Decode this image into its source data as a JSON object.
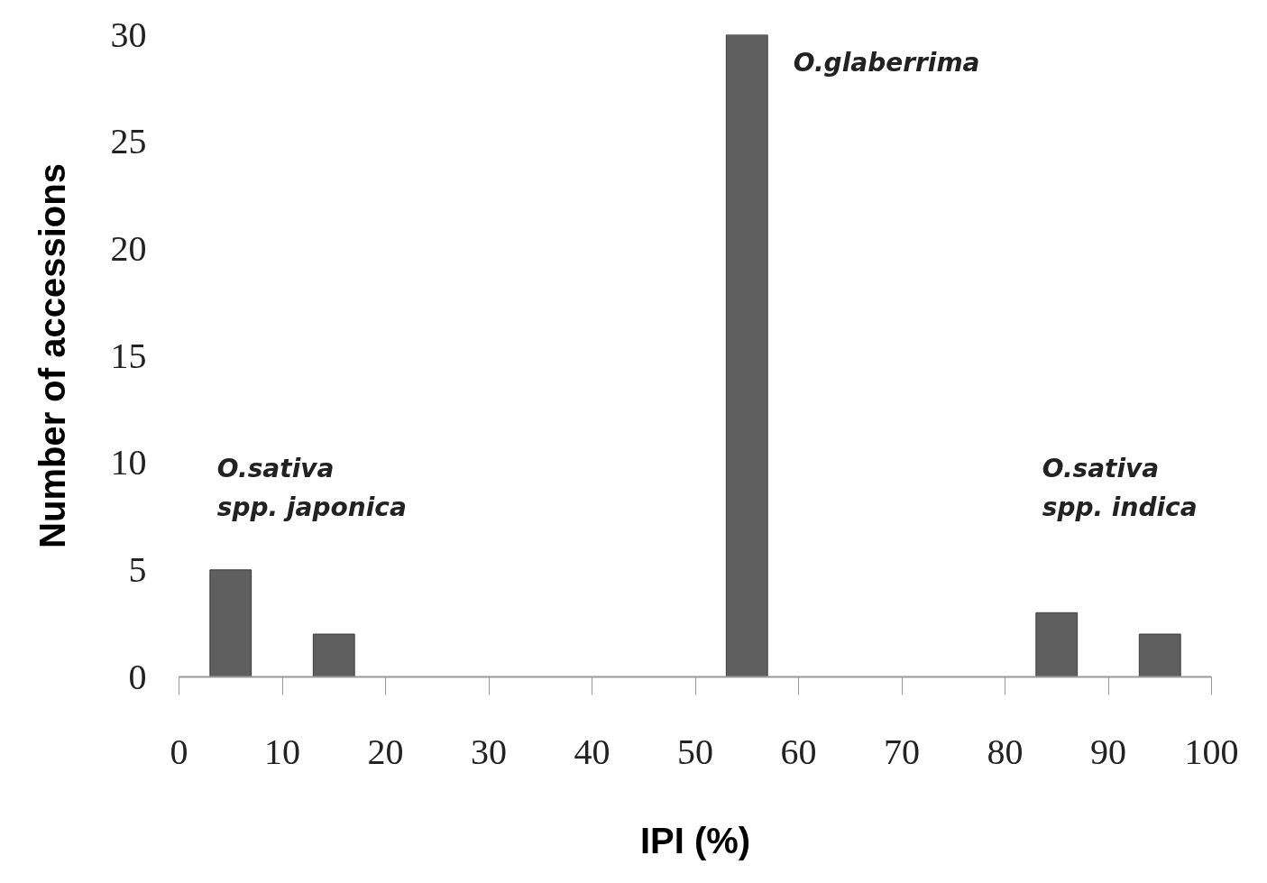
{
  "chart_data": {
    "type": "bar",
    "xlabel": "IPI (%)",
    "ylabel": "Number of accessions",
    "x": [
      5,
      15,
      55,
      85,
      95
    ],
    "values": [
      5,
      2,
      30,
      3,
      2
    ],
    "color": "#5f5f5f",
    "xlim": [
      0,
      100
    ],
    "xticks": [
      0,
      10,
      20,
      30,
      40,
      50,
      60,
      70,
      80,
      90,
      100
    ],
    "ylim": [
      0,
      30
    ],
    "yticks": [
      0,
      5,
      10,
      15,
      20,
      25,
      30
    ],
    "grid": false,
    "annotations": [
      "O.sativa\nspp. japonica",
      "O.glaberrima",
      "O.sativa\nspp. indica"
    ]
  }
}
